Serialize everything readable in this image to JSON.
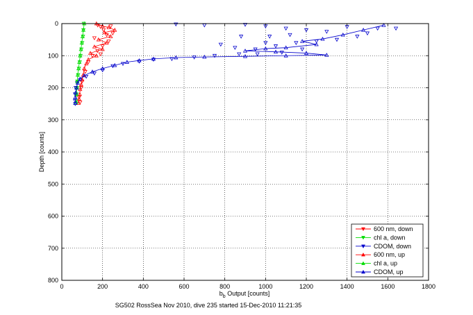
{
  "chart_data": {
    "type": "scatter",
    "xlabel_main": "b",
    "xlabel_sub": "b",
    "xlabel_rest": " Output [counts]",
    "ylabel": "Depth [counts]",
    "caption": "SG502 RossSea Nov 2010, dive 235 started 15-Dec-2010 11:21:35",
    "xlim": [
      0,
      1800
    ],
    "ylim": [
      0,
      800
    ],
    "y_reversed": true,
    "grid": true,
    "legend_position": "bottom-right",
    "xticks": [
      0,
      200,
      400,
      600,
      800,
      1000,
      1200,
      1400,
      1600,
      1800
    ],
    "yticks": [
      0,
      100,
      200,
      300,
      400,
      500,
      600,
      700,
      800
    ],
    "series": [
      {
        "name": "600 nm, down",
        "color": "#ff0000",
        "marker": "triangle-down",
        "connected": false,
        "points": [
          [
            176,
            5
          ],
          [
            190,
            10
          ],
          [
            240,
            8
          ],
          [
            205,
            20
          ],
          [
            220,
            35
          ],
          [
            250,
            30
          ],
          [
            160,
            45
          ],
          [
            230,
            55
          ],
          [
            200,
            70
          ],
          [
            175,
            85
          ],
          [
            150,
            100
          ],
          [
            190,
            95
          ],
          [
            130,
            120
          ],
          [
            115,
            150
          ],
          [
            100,
            180
          ],
          [
            95,
            200
          ],
          [
            85,
            230
          ],
          [
            90,
            245
          ]
        ]
      },
      {
        "name": "chl a, down",
        "color": "#00dd00",
        "marker": "triangle-down",
        "connected": false,
        "points": [
          [
            108,
            0
          ],
          [
            106,
            20
          ],
          [
            104,
            40
          ],
          [
            100,
            60
          ],
          [
            96,
            80
          ],
          [
            92,
            100
          ],
          [
            88,
            120
          ],
          [
            84,
            140
          ],
          [
            80,
            160
          ],
          [
            76,
            180
          ],
          [
            74,
            200
          ],
          [
            72,
            220
          ],
          [
            72,
            240
          ]
        ]
      },
      {
        "name": "CDOM, down",
        "color": "#0000cc",
        "marker": "triangle-down",
        "connected": false,
        "points": [
          [
            560,
            2
          ],
          [
            700,
            5
          ],
          [
            900,
            3
          ],
          [
            1000,
            8
          ],
          [
            1100,
            15
          ],
          [
            1200,
            20
          ],
          [
            1300,
            25
          ],
          [
            1400,
            10
          ],
          [
            1500,
            30
          ],
          [
            1550,
            15
          ],
          [
            1640,
            15
          ],
          [
            1450,
            40
          ],
          [
            1350,
            50
          ],
          [
            1250,
            55
          ],
          [
            1150,
            60
          ],
          [
            1050,
            70
          ],
          [
            950,
            80
          ],
          [
            850,
            75
          ],
          [
            780,
            65
          ],
          [
            880,
            40
          ],
          [
            1020,
            40
          ],
          [
            1120,
            35
          ],
          [
            1180,
            80
          ],
          [
            1080,
            90
          ],
          [
            960,
            95
          ],
          [
            1000,
            60
          ],
          [
            870,
            95
          ],
          [
            750,
            100
          ],
          [
            650,
            105
          ],
          [
            540,
            110
          ],
          [
            450,
            112
          ],
          [
            380,
            118
          ],
          [
            300,
            125
          ],
          [
            250,
            132
          ],
          [
            200,
            145
          ],
          [
            160,
            155
          ],
          [
            120,
            165
          ],
          [
            90,
            175
          ],
          [
            75,
            185
          ],
          [
            68,
            200
          ],
          [
            65,
            220
          ],
          [
            65,
            240
          ],
          [
            66,
            250
          ]
        ]
      },
      {
        "name": "600 nm, up",
        "color": "#ff0000",
        "marker": "triangle-up",
        "connected": true,
        "points": [
          [
            170,
            0
          ],
          [
            200,
            8
          ],
          [
            230,
            12
          ],
          [
            260,
            20
          ],
          [
            210,
            28
          ],
          [
            240,
            40
          ],
          [
            180,
            50
          ],
          [
            220,
            60
          ],
          [
            160,
            72
          ],
          [
            200,
            80
          ],
          [
            140,
            92
          ],
          [
            170,
            100
          ],
          [
            130,
            112
          ],
          [
            120,
            125
          ],
          [
            110,
            140
          ],
          [
            105,
            160
          ],
          [
            100,
            175
          ],
          [
            95,
            190
          ],
          [
            90,
            205
          ],
          [
            88,
            220
          ],
          [
            85,
            235
          ],
          [
            82,
            248
          ]
        ]
      },
      {
        "name": "chl a, up",
        "color": "#00dd00",
        "marker": "triangle-up",
        "connected": true,
        "points": [
          [
            110,
            0
          ],
          [
            106,
            20
          ],
          [
            102,
            40
          ],
          [
            98,
            60
          ],
          [
            94,
            80
          ],
          [
            90,
            100
          ],
          [
            86,
            120
          ],
          [
            82,
            140
          ],
          [
            78,
            160
          ],
          [
            76,
            180
          ],
          [
            74,
            200
          ],
          [
            72,
            220
          ],
          [
            72,
            245
          ]
        ]
      },
      {
        "name": "CDOM, up",
        "color": "#0000cc",
        "marker": "triangle-up",
        "connected": true,
        "points": [
          [
            1580,
            5
          ],
          [
            1480,
            20
          ],
          [
            1380,
            35
          ],
          [
            1280,
            48
          ],
          [
            1180,
            55
          ],
          [
            1250,
            65
          ],
          [
            1100,
            75
          ],
          [
            1000,
            78
          ],
          [
            900,
            85
          ],
          [
            1050,
            88
          ],
          [
            1200,
            92
          ],
          [
            1300,
            98
          ],
          [
            1100,
            100
          ],
          [
            900,
            102
          ],
          [
            700,
            104
          ],
          [
            560,
            106
          ],
          [
            450,
            110
          ],
          [
            380,
            115
          ],
          [
            320,
            120
          ],
          [
            260,
            130
          ],
          [
            200,
            140
          ],
          [
            150,
            150
          ],
          [
            110,
            162
          ],
          [
            90,
            172
          ],
          [
            78,
            185
          ],
          [
            72,
            200
          ],
          [
            68,
            215
          ],
          [
            66,
            230
          ],
          [
            66,
            248
          ]
        ]
      }
    ]
  }
}
